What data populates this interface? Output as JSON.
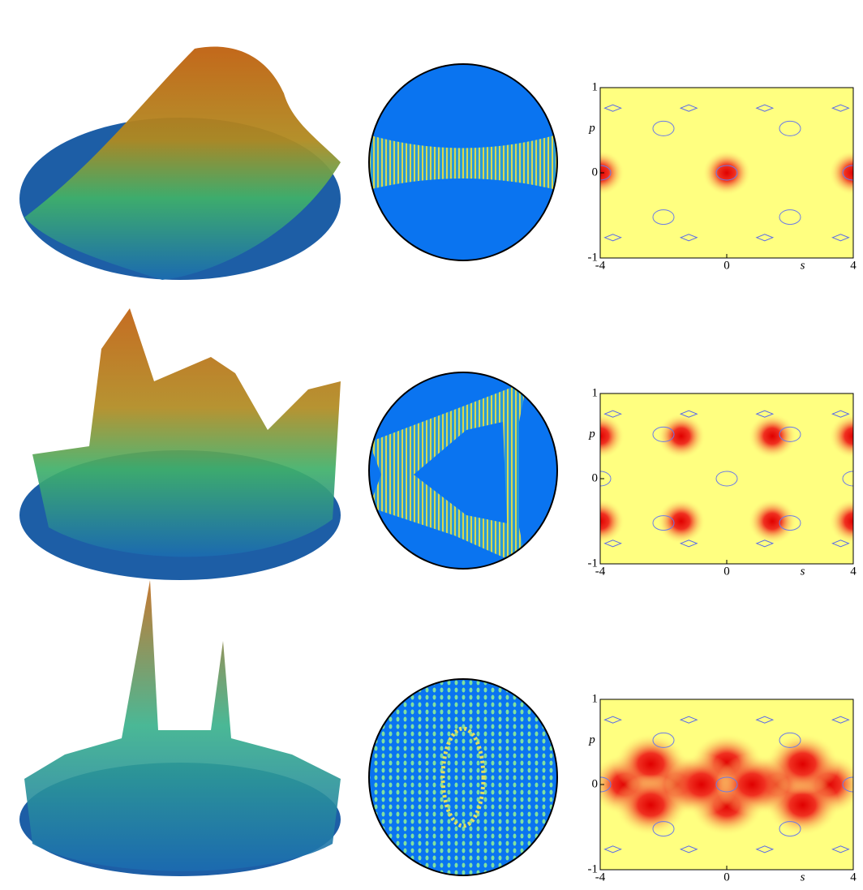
{
  "panels": [
    {
      "xlim": [
        -4,
        4
      ],
      "xticks": [
        -4,
        0,
        4
      ],
      "ylim": [
        -1,
        1
      ],
      "yticks": [
        -1,
        0,
        1
      ],
      "xlabel": "s",
      "ylabel": "p"
    },
    {
      "xlim": [
        -4,
        4
      ],
      "xticks": [
        -4,
        0,
        4
      ],
      "ylim": [
        -1,
        1
      ],
      "yticks": [
        -1,
        0,
        1
      ],
      "xlabel": "s",
      "ylabel": "p"
    },
    {
      "xlim": [
        -4,
        4
      ],
      "xticks": [
        -4,
        0,
        4
      ],
      "ylim": [
        -1,
        1
      ],
      "yticks": [
        -1,
        0,
        1
      ],
      "xlabel": "s",
      "ylabel": "p"
    }
  ]
}
